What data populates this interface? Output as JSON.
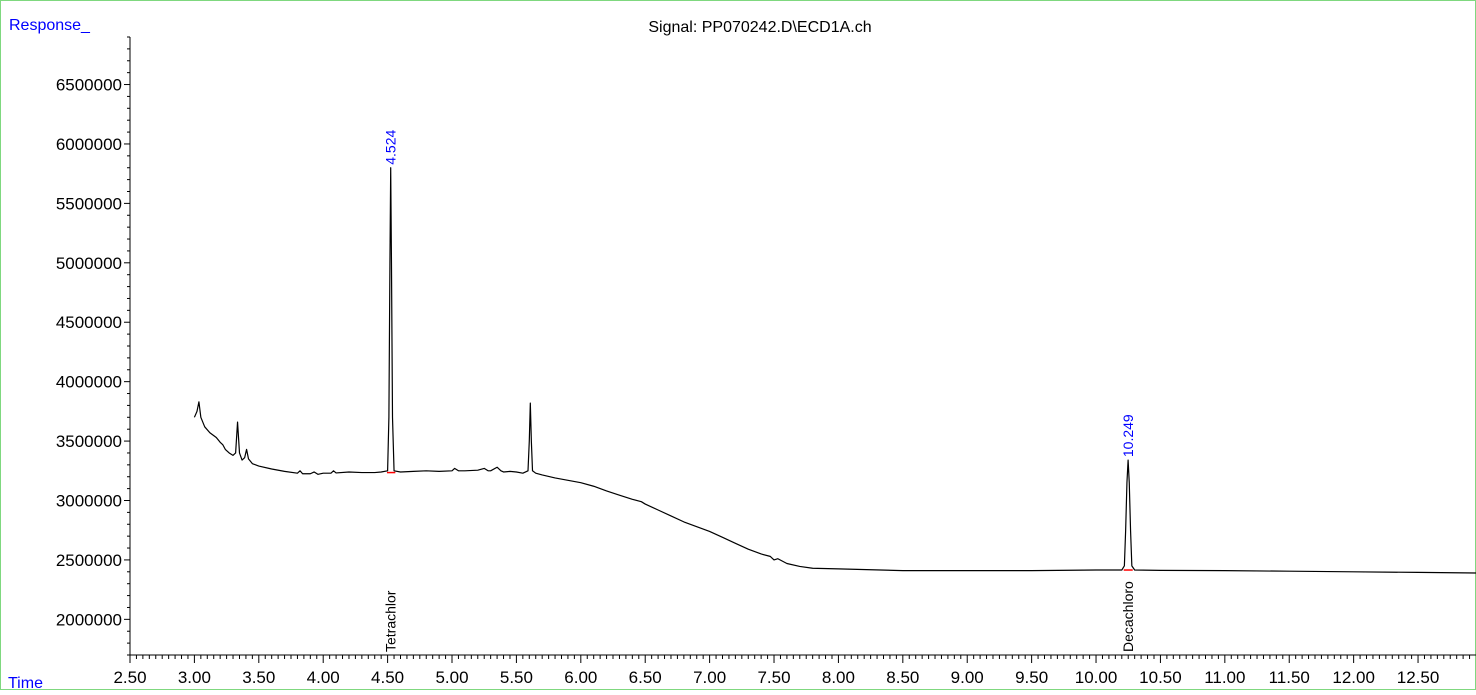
{
  "title": "Signal: PP070242.D\\ECD1A.ch",
  "ylabel": "Response_",
  "xlabel": "Time",
  "colors": {
    "trace": "#000000",
    "annotation": "#0000ff",
    "baseline_marker": "#ff0000",
    "frame": "#7fd87f"
  },
  "chart_data": {
    "type": "line",
    "title": "Signal: PP070242.D\\ECD1A.ch",
    "xlabel": "Time",
    "ylabel": "Response_",
    "xlim": [
      2.5,
      12.95
    ],
    "ylim": [
      1700000,
      6900000
    ],
    "xticks": [
      2.5,
      3.0,
      3.5,
      4.0,
      4.5,
      5.0,
      5.5,
      6.0,
      6.5,
      7.0,
      7.5,
      8.0,
      8.5,
      9.0,
      9.5,
      10.0,
      10.5,
      11.0,
      11.5,
      12.0,
      12.5
    ],
    "xtick_labels": [
      "2.50",
      "3.00",
      "3.50",
      "4.00",
      "4.50",
      "5.00",
      "5.50",
      "6.00",
      "6.50",
      "7.00",
      "7.50",
      "8.00",
      "8.50",
      "9.00",
      "9.50",
      "10.00",
      "10.50",
      "11.00",
      "11.50",
      "12.00",
      "12.50"
    ],
    "yticks": [
      2000000,
      2500000,
      3000000,
      3500000,
      4000000,
      4500000,
      5000000,
      5500000,
      6000000,
      6500000
    ],
    "ytick_labels": [
      "2000000",
      "2500000",
      "3000000",
      "3500000",
      "4000000",
      "4500000",
      "5000000",
      "5500000",
      "6000000",
      "6500000"
    ],
    "grid": false,
    "series": [
      {
        "points": [
          [
            3.0,
            3700000
          ],
          [
            3.02,
            3750000
          ],
          [
            3.035,
            3830000
          ],
          [
            3.05,
            3700000
          ],
          [
            3.08,
            3620000
          ],
          [
            3.12,
            3570000
          ],
          [
            3.17,
            3530000
          ],
          [
            3.2,
            3490000
          ],
          [
            3.22,
            3470000
          ],
          [
            3.24,
            3430000
          ],
          [
            3.27,
            3400000
          ],
          [
            3.3,
            3380000
          ],
          [
            3.32,
            3400000
          ],
          [
            3.335,
            3660000
          ],
          [
            3.35,
            3400000
          ],
          [
            3.37,
            3340000
          ],
          [
            3.39,
            3360000
          ],
          [
            3.405,
            3430000
          ],
          [
            3.42,
            3350000
          ],
          [
            3.45,
            3310000
          ],
          [
            3.5,
            3290000
          ],
          [
            3.6,
            3265000
          ],
          [
            3.7,
            3245000
          ],
          [
            3.8,
            3230000
          ],
          [
            3.82,
            3250000
          ],
          [
            3.84,
            3225000
          ],
          [
            3.9,
            3225000
          ],
          [
            3.93,
            3240000
          ],
          [
            3.96,
            3220000
          ],
          [
            4.0,
            3230000
          ],
          [
            4.06,
            3230000
          ],
          [
            4.08,
            3250000
          ],
          [
            4.1,
            3232000
          ],
          [
            4.2,
            3240000
          ],
          [
            4.3,
            3235000
          ],
          [
            4.4,
            3235000
          ],
          [
            4.45,
            3240000
          ],
          [
            4.5,
            3250000
          ],
          [
            4.51,
            3700000
          ],
          [
            4.518,
            5000000
          ],
          [
            4.524,
            5800000
          ],
          [
            4.53,
            5000000
          ],
          [
            4.538,
            3700000
          ],
          [
            4.55,
            3250000
          ],
          [
            4.6,
            3240000
          ],
          [
            4.7,
            3245000
          ],
          [
            4.8,
            3250000
          ],
          [
            4.9,
            3245000
          ],
          [
            5.0,
            3250000
          ],
          [
            5.02,
            3270000
          ],
          [
            5.05,
            3250000
          ],
          [
            5.1,
            3250000
          ],
          [
            5.2,
            3255000
          ],
          [
            5.25,
            3270000
          ],
          [
            5.28,
            3250000
          ],
          [
            5.3,
            3250000
          ],
          [
            5.35,
            3280000
          ],
          [
            5.38,
            3250000
          ],
          [
            5.4,
            3240000
          ],
          [
            5.45,
            3245000
          ],
          [
            5.5,
            3240000
          ],
          [
            5.55,
            3230000
          ],
          [
            5.59,
            3250000
          ],
          [
            5.6,
            3500000
          ],
          [
            5.608,
            3820000
          ],
          [
            5.616,
            3500000
          ],
          [
            5.625,
            3250000
          ],
          [
            5.65,
            3230000
          ],
          [
            5.7,
            3215000
          ],
          [
            5.8,
            3190000
          ],
          [
            5.9,
            3170000
          ],
          [
            6.0,
            3150000
          ],
          [
            6.1,
            3120000
          ],
          [
            6.2,
            3080000
          ],
          [
            6.3,
            3045000
          ],
          [
            6.4,
            3010000
          ],
          [
            6.47,
            2990000
          ],
          [
            6.5,
            2970000
          ],
          [
            6.6,
            2920000
          ],
          [
            6.7,
            2870000
          ],
          [
            6.8,
            2820000
          ],
          [
            6.9,
            2780000
          ],
          [
            7.0,
            2740000
          ],
          [
            7.1,
            2690000
          ],
          [
            7.2,
            2640000
          ],
          [
            7.3,
            2590000
          ],
          [
            7.4,
            2550000
          ],
          [
            7.47,
            2530000
          ],
          [
            7.5,
            2500000
          ],
          [
            7.53,
            2510000
          ],
          [
            7.6,
            2470000
          ],
          [
            7.7,
            2445000
          ],
          [
            7.8,
            2430000
          ],
          [
            8.0,
            2425000
          ],
          [
            8.5,
            2410000
          ],
          [
            9.0,
            2410000
          ],
          [
            9.5,
            2410000
          ],
          [
            10.0,
            2415000
          ],
          [
            10.2,
            2415000
          ],
          [
            10.22,
            2450000
          ],
          [
            10.23,
            2750000
          ],
          [
            10.24,
            3150000
          ],
          [
            10.249,
            3340000
          ],
          [
            10.258,
            3150000
          ],
          [
            10.268,
            2750000
          ],
          [
            10.278,
            2450000
          ],
          [
            10.3,
            2415000
          ],
          [
            10.5,
            2412000
          ],
          [
            11.0,
            2410000
          ],
          [
            11.5,
            2405000
          ],
          [
            12.0,
            2400000
          ],
          [
            12.5,
            2395000
          ],
          [
            12.95,
            2390000
          ]
        ]
      }
    ],
    "peak_labels": [
      {
        "x": 4.524,
        "y": 5800000,
        "label": "4.524"
      },
      {
        "x": 10.249,
        "y": 3340000,
        "label": "10.249"
      }
    ],
    "compound_labels": [
      {
        "x": 4.524,
        "label": "Tetrachlor"
      },
      {
        "x": 10.249,
        "label": "Decachloro"
      }
    ],
    "baselines": [
      {
        "x0": 4.495,
        "x1": 4.56,
        "y": 3235000
      },
      {
        "x0": 10.215,
        "x1": 10.285,
        "y": 2415000
      }
    ]
  }
}
